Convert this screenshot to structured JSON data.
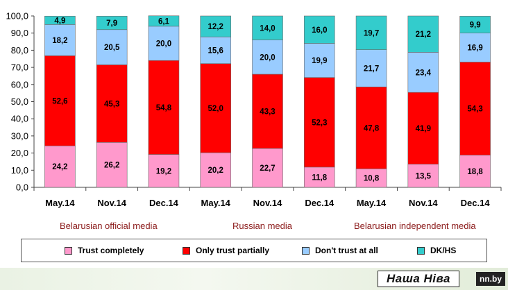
{
  "chart_data": {
    "type": "bar",
    "stacked": true,
    "categories": [
      "May.14",
      "Nov.14",
      "Dec.14",
      "May.14",
      "Nov.14",
      "Dec.14",
      "May.14",
      "Nov.14",
      "Dec.14"
    ],
    "series": [
      {
        "name": "Trust completely",
        "color": "#ff99cc",
        "values": [
          24.2,
          26.2,
          19.2,
          20.2,
          22.7,
          11.8,
          10.8,
          13.5,
          18.8
        ],
        "labels": [
          "24,2",
          "26,2",
          "19,2",
          "20,2",
          "22,7",
          "11,8",
          "10,8",
          "13,5",
          "18,8"
        ]
      },
      {
        "name": "Only trust partially",
        "color": "#ff0000",
        "values": [
          52.6,
          45.3,
          54.8,
          52.0,
          43.3,
          52.3,
          47.8,
          41.9,
          54.3
        ],
        "labels": [
          "52,6",
          "45,3",
          "54,8",
          "52,0",
          "43,3",
          "52,3",
          "47,8",
          "41,9",
          "54,3"
        ]
      },
      {
        "name": "Don't trust at all",
        "color": "#99ccff",
        "values": [
          18.2,
          20.5,
          20.0,
          15.6,
          20.0,
          19.9,
          21.7,
          23.4,
          16.9
        ],
        "labels": [
          "18,2",
          "20,5",
          "20,0",
          "15,6",
          "20,0",
          "19,9",
          "21,7",
          "23,4",
          "16,9"
        ]
      },
      {
        "name": "DK/HS",
        "color": "#33cccc",
        "values": [
          4.9,
          7.9,
          6.1,
          12.2,
          14.0,
          16.0,
          19.7,
          21.2,
          9.9
        ],
        "labels": [
          "4,9",
          "7,9",
          "6,1",
          "12,2",
          "14,0",
          "16,0",
          "19,7",
          "21,2",
          "9,9"
        ]
      }
    ],
    "groups": [
      "Belarusian official media",
      "Russian media",
      "Belarusian independent media"
    ],
    "ylim": [
      0,
      100
    ],
    "yticks": [
      "0,0",
      "10,0",
      "20,0",
      "30,0",
      "40,0",
      "50,0",
      "60,0",
      "70,0",
      "80,0",
      "90,0",
      "100,0"
    ],
    "grid": false,
    "legend_position": "bottom"
  },
  "footer": {
    "logo_text": "Наша Ніва",
    "site": "nn.by"
  }
}
